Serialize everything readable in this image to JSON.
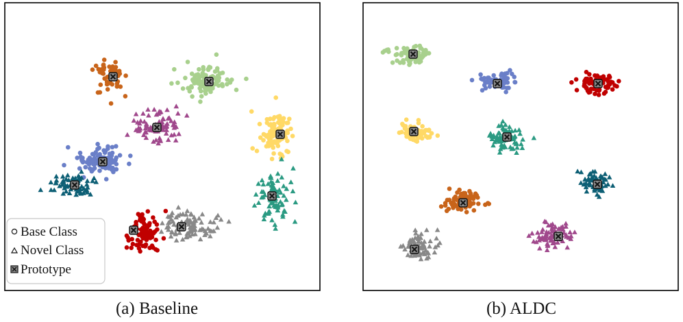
{
  "chart_data": [
    {
      "type": "scatter",
      "title": "",
      "caption": "(a) Baseline",
      "xlim": [
        0,
        460
      ],
      "ylim": [
        0,
        420
      ],
      "grid": false,
      "legend": {
        "position": "bottom-left",
        "entries": [
          {
            "label": "Base Class",
            "marker": "circle"
          },
          {
            "label": "Novel Class",
            "marker": "triangle"
          },
          {
            "label": "Prototype",
            "marker": "x-square"
          }
        ]
      },
      "clusters": [
        {
          "color": "#c8641a",
          "marker": "circle",
          "center": [
            153,
            108
          ],
          "spread": [
            18,
            26
          ],
          "count": 55,
          "seed": 11
        },
        {
          "color": "#a8d08d",
          "marker": "circle",
          "center": [
            296,
            113
          ],
          "spread": [
            36,
            22
          ],
          "count": 90,
          "seed": 12
        },
        {
          "color": "#a0488c",
          "marker": "triangle",
          "center": [
            222,
            180
          ],
          "spread": [
            34,
            22
          ],
          "count": 85,
          "seed": 13
        },
        {
          "color": "#ffd966",
          "marker": "circle",
          "center": [
            397,
            192
          ],
          "spread": [
            22,
            30
          ],
          "count": 95,
          "seed": 14
        },
        {
          "color": "#6a7fc8",
          "marker": "circle",
          "center": [
            142,
            232
          ],
          "spread": [
            32,
            18
          ],
          "count": 95,
          "seed": 15
        },
        {
          "color": "#0d5f75",
          "marker": "triangle",
          "center": [
            100,
            266
          ],
          "spread": [
            28,
            14
          ],
          "count": 70,
          "seed": 16
        },
        {
          "color": "#2a9a82",
          "marker": "triangle",
          "center": [
            392,
            280
          ],
          "spread": [
            22,
            34
          ],
          "count": 80,
          "seed": 17
        },
        {
          "color": "#c00000",
          "marker": "circle",
          "center": [
            203,
            335
          ],
          "spread": [
            20,
            28
          ],
          "count": 85,
          "seed": 18
        },
        {
          "color": "#888888",
          "marker": "triangle",
          "center": [
            270,
            325
          ],
          "spread": [
            38,
            20
          ],
          "count": 90,
          "seed": 19
        }
      ],
      "prototypes": [
        [
          158,
          108
        ],
        [
          298,
          115
        ],
        [
          222,
          182
        ],
        [
          402,
          192
        ],
        [
          143,
          232
        ],
        [
          102,
          266
        ],
        [
          390,
          282
        ],
        [
          188,
          332
        ],
        [
          258,
          327
        ]
      ]
    },
    {
      "type": "scatter",
      "title": "",
      "caption": "(b) ALDC",
      "xlim": [
        0,
        460
      ],
      "ylim": [
        0,
        420
      ],
      "grid": false,
      "clusters": [
        {
          "color": "#a8d08d",
          "marker": "circle",
          "center": [
            73,
            75
          ],
          "spread": [
            26,
            13
          ],
          "count": 75,
          "seed": 21
        },
        {
          "color": "#6a7fc8",
          "marker": "circle",
          "center": [
            195,
            115
          ],
          "spread": [
            22,
            11
          ],
          "count": 60,
          "seed": 22
        },
        {
          "color": "#c00000",
          "marker": "circle",
          "center": [
            340,
            118
          ],
          "spread": [
            24,
            12
          ],
          "count": 75,
          "seed": 23
        },
        {
          "color": "#ffd966",
          "marker": "circle",
          "center": [
            75,
            188
          ],
          "spread": [
            20,
            13
          ],
          "count": 75,
          "seed": 24
        },
        {
          "color": "#2a9a82",
          "marker": "triangle",
          "center": [
            210,
            196
          ],
          "spread": [
            22,
            15
          ],
          "count": 80,
          "seed": 25
        },
        {
          "color": "#0d5f75",
          "marker": "triangle",
          "center": [
            340,
            265
          ],
          "spread": [
            20,
            17
          ],
          "count": 70,
          "seed": 26
        },
        {
          "color": "#c8641a",
          "marker": "circle",
          "center": [
            145,
            290
          ],
          "spread": [
            26,
            14
          ],
          "count": 85,
          "seed": 27
        },
        {
          "color": "#a0488c",
          "marker": "triangle",
          "center": [
            280,
            340
          ],
          "spread": [
            26,
            18
          ],
          "count": 75,
          "seed": 28
        },
        {
          "color": "#888888",
          "marker": "triangle",
          "center": [
            80,
            356
          ],
          "spread": [
            22,
            17
          ],
          "count": 75,
          "seed": 29
        }
      ],
      "prototypes": [
        [
          73,
          75
        ],
        [
          196,
          118
        ],
        [
          343,
          118
        ],
        [
          74,
          188
        ],
        [
          210,
          196
        ],
        [
          342,
          265
        ],
        [
          146,
          292
        ],
        [
          285,
          341
        ],
        [
          75,
          360
        ]
      ]
    }
  ]
}
